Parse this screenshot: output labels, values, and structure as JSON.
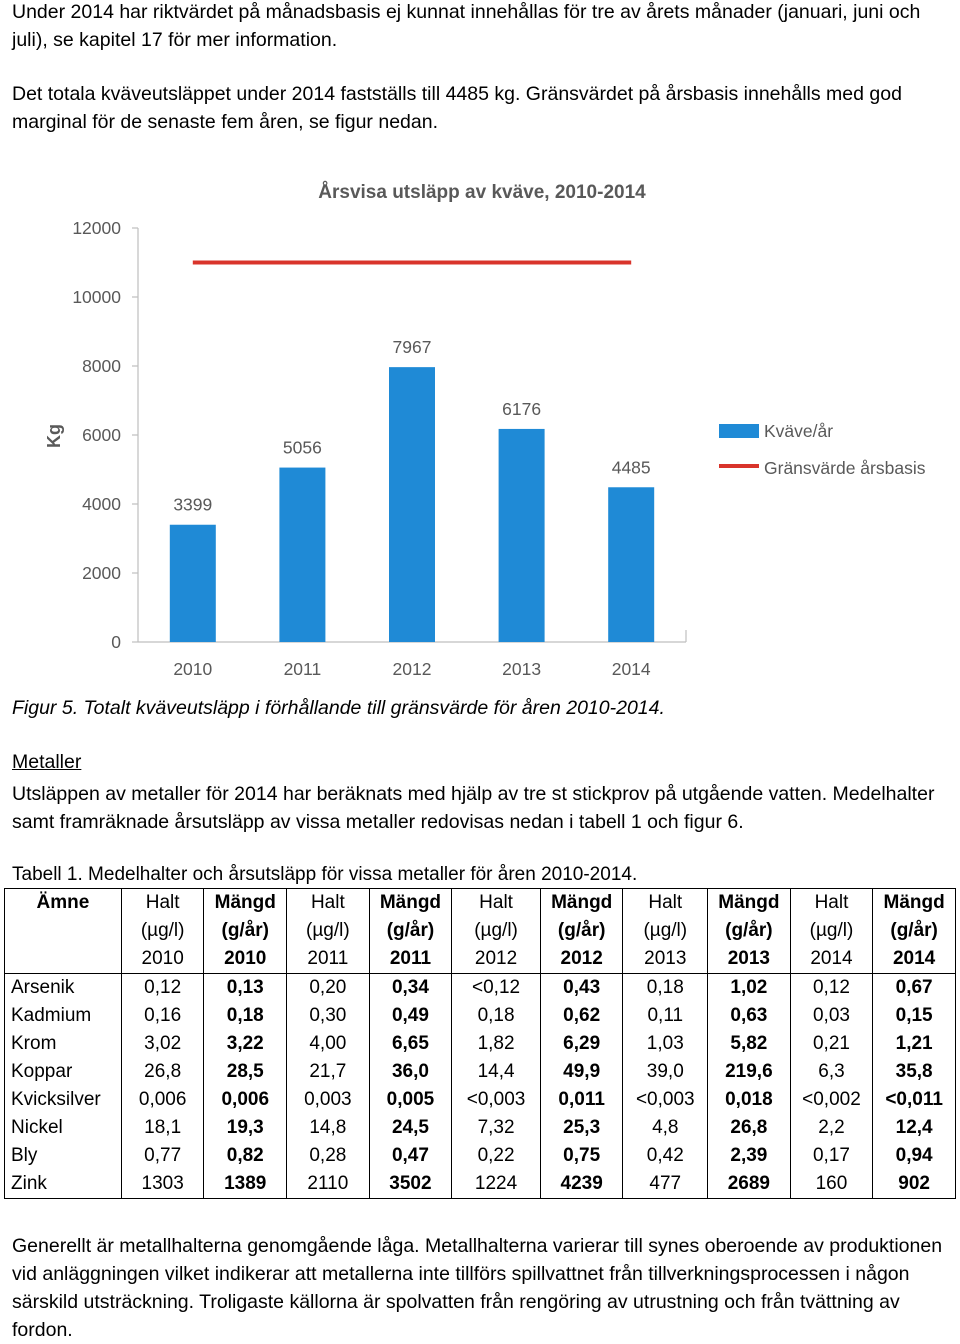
{
  "intro": {
    "para1": "Under 2014 har riktvärdet på månadsbasis ej kunnat innehållas för tre av årets månader (januari, juni och juli), se kapitel 17 för mer information.",
    "para2": "Det totala kväveutsläppet under 2014 fastställs till 4485 kg. Gränsvärdet på årsbasis innehålls med god marginal för de senaste fem åren, se figur nedan."
  },
  "chart_data": {
    "type": "bar",
    "title": "Årsvisa utsläpp av kväve, 2010-2014",
    "ylabel": "Kg",
    "xlabel": "",
    "categories": [
      "2010",
      "2011",
      "2012",
      "2013",
      "2014"
    ],
    "series": [
      {
        "name": "Kväve/år",
        "values": [
          3399,
          5056,
          7967,
          6176,
          4485
        ],
        "color": "#1f8ad6",
        "type": "bar"
      },
      {
        "name": "Gränsvärde årsbasis",
        "values": [
          11000,
          11000,
          11000,
          11000,
          11000
        ],
        "color": "#d9342b",
        "type": "line"
      }
    ],
    "yticks": [
      "0",
      "2000",
      "4000",
      "6000",
      "8000",
      "10000",
      "12000"
    ],
    "data_labels": [
      "3399",
      "5056",
      "7967",
      "6176",
      "4485"
    ],
    "ylim": [
      0,
      12000
    ],
    "grid": false,
    "legend": "right"
  },
  "figure_caption": "Figur 5. Totalt kväveutsläpp i förhållande till gränsvärde för åren 2010-2014.",
  "metals": {
    "heading": "Metaller",
    "para": "Utsläppen av metaller för 2014 har beräknats med hjälp av tre st stickprov på utgående vatten. Medelhalter samt framräknade årsutsläpp av vissa metaller redovisas nedan i tabell 1 och figur 6."
  },
  "table": {
    "caption": "Tabell 1. Medelhalter och årsutsläpp för vissa metaller för åren 2010-2014.",
    "header_name": "Ämne",
    "columns": [
      {
        "l1": "Halt",
        "l2": "(µg/l)",
        "l3": "2010",
        "bold": false
      },
      {
        "l1": "Mängd",
        "l2": "(g/år)",
        "l3": "2010",
        "bold": true
      },
      {
        "l1": "Halt",
        "l2": "(µg/l)",
        "l3": "2011",
        "bold": false
      },
      {
        "l1": "Mängd",
        "l2": "(g/år)",
        "l3": "2011",
        "bold": true
      },
      {
        "l1": "Halt",
        "l2": "(µg/l)",
        "l3": "2012",
        "bold": false
      },
      {
        "l1": "Mängd",
        "l2": "(g/år)",
        "l3": "2012",
        "bold": true
      },
      {
        "l1": "Halt",
        "l2": "(µg/l)",
        "l3": "2013",
        "bold": false
      },
      {
        "l1": "Mängd",
        "l2": "(g/år)",
        "l3": "2013",
        "bold": true
      },
      {
        "l1": "Halt",
        "l2": "(µg/l)",
        "l3": "2014",
        "bold": false
      },
      {
        "l1": "Mängd",
        "l2": "(g/år)",
        "l3": "2014",
        "bold": true
      }
    ],
    "rows": [
      {
        "name": "Arsenik",
        "values": [
          "0,12",
          "0,13",
          "0,20",
          "0,34",
          "<0,12",
          "0,43",
          "0,18",
          "1,02",
          "0,12",
          "0,67"
        ]
      },
      {
        "name": "Kadmium",
        "values": [
          "0,16",
          "0,18",
          "0,30",
          "0,49",
          "0,18",
          "0,62",
          "0,11",
          "0,63",
          "0,03",
          "0,15"
        ]
      },
      {
        "name": "Krom",
        "values": [
          "3,02",
          "3,22",
          "4,00",
          "6,65",
          "1,82",
          "6,29",
          "1,03",
          "5,82",
          "0,21",
          "1,21"
        ]
      },
      {
        "name": "Koppar",
        "values": [
          "26,8",
          "28,5",
          "21,7",
          "36,0",
          "14,4",
          "49,9",
          "39,0",
          "219,6",
          "6,3",
          "35,8"
        ]
      },
      {
        "name": "Kvicksilver",
        "values": [
          "0,006",
          "0,006",
          "0,003",
          "0,005",
          "<0,003",
          "0,011",
          "<0,003",
          "0,018",
          "<0,002",
          "<0,011"
        ]
      },
      {
        "name": "Nickel",
        "values": [
          "18,1",
          "19,3",
          "14,8",
          "24,5",
          "7,32",
          "25,3",
          "4,8",
          "26,8",
          "2,2",
          "12,4"
        ]
      },
      {
        "name": "Bly",
        "values": [
          "0,77",
          "0,82",
          "0,28",
          "0,47",
          "0,22",
          "0,75",
          "0,42",
          "2,39",
          "0,17",
          "0,94"
        ]
      },
      {
        "name": "Zink",
        "values": [
          "1303",
          "1389",
          "2110",
          "3502",
          "1224",
          "4239",
          "477",
          "2689",
          "160",
          "902"
        ]
      }
    ]
  },
  "outro": "Generellt är metallhalterna genomgående låga. Metallhalterna varierar till synes oberoende av produktionen vid anläggningen vilket indikerar att metallerna inte tillförs spillvattnet  från tillverkningsprocessen i någon särskild utsträckning. Troligaste källorna är spolvatten från rengöring av utrustning och från tvättning av fordon."
}
